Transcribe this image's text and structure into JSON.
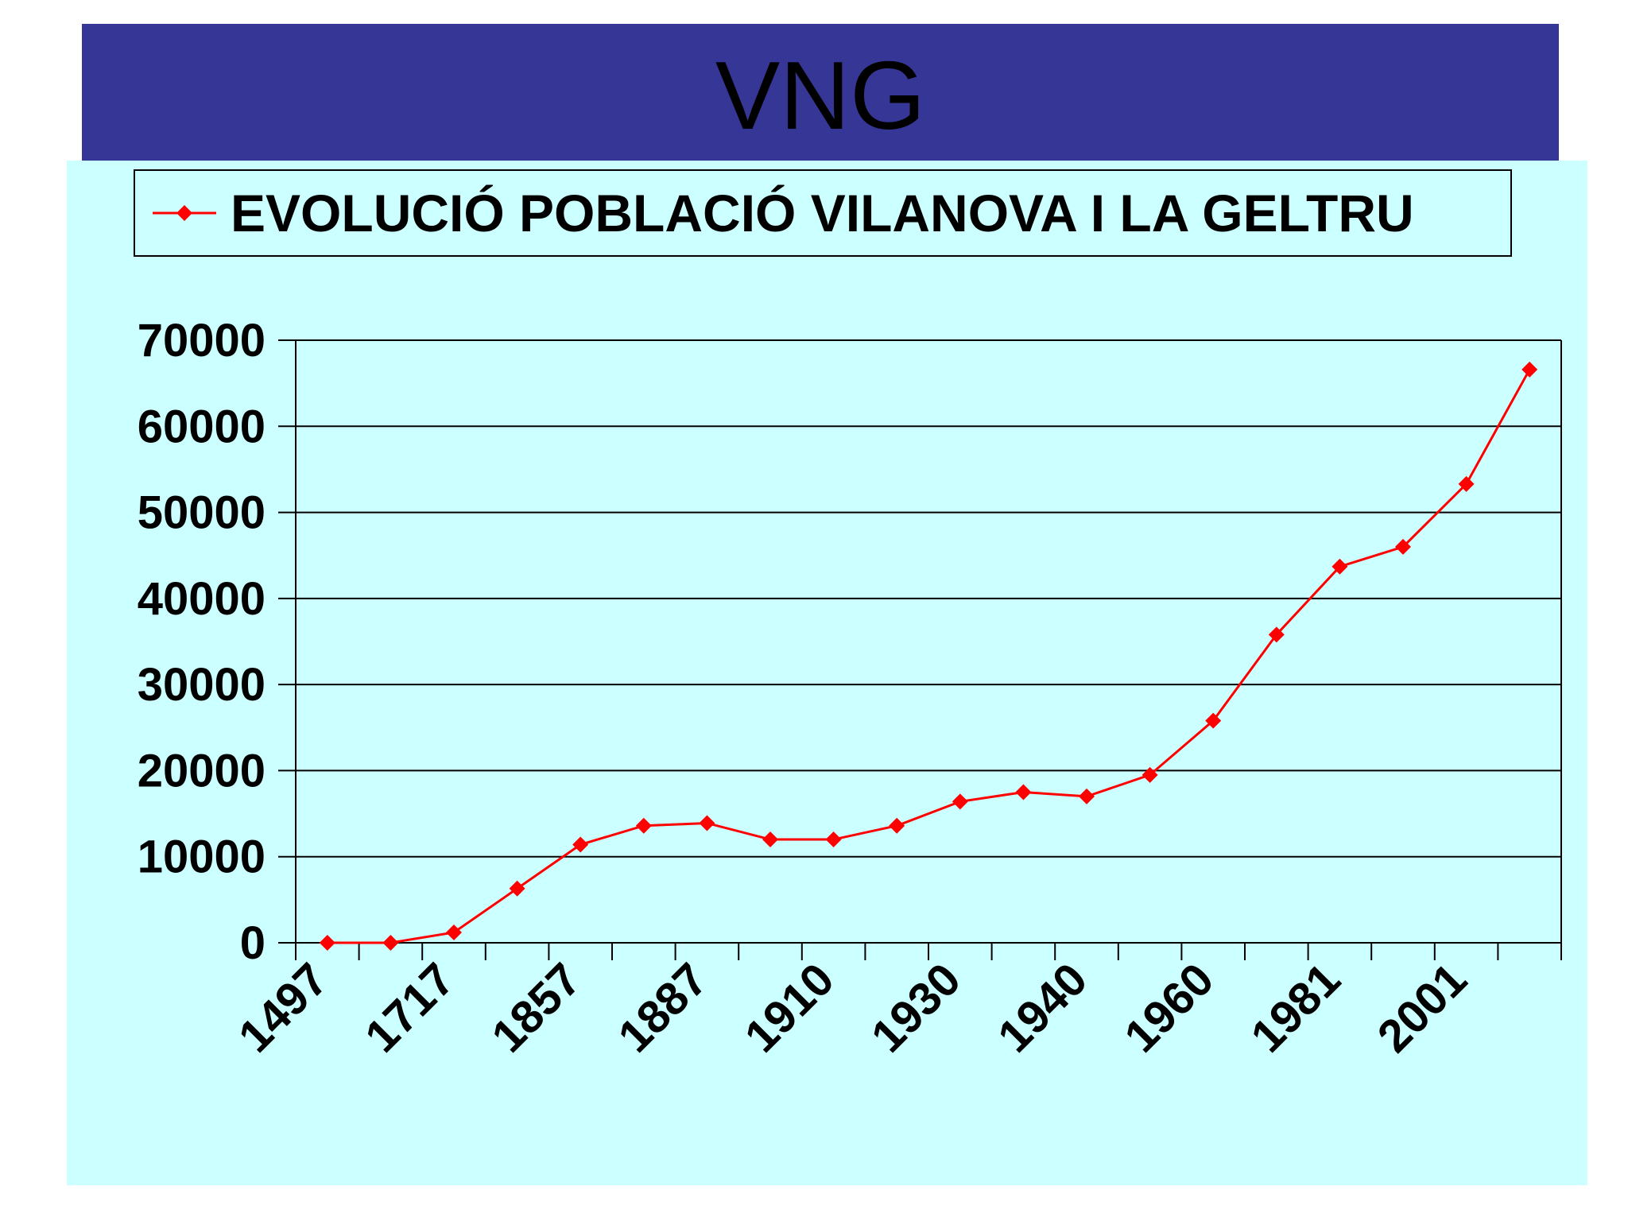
{
  "slide": {
    "title": "VNG",
    "title_bar_color": "#363696",
    "background_color": "#ccffff"
  },
  "chart_data": {
    "type": "line",
    "title": "",
    "xlabel": "",
    "ylabel": "",
    "ylim": [
      0,
      70000
    ],
    "yticks": [
      0,
      10000,
      20000,
      30000,
      40000,
      50000,
      60000,
      70000
    ],
    "x_tick_labels": [
      "1497",
      "1717",
      "1857",
      "1887",
      "1910",
      "1930",
      "1940",
      "1960",
      "1981",
      "2001"
    ],
    "grid": "horizontal",
    "legend": "top",
    "line_color": "#ff0000",
    "marker": "diamond",
    "series": [
      {
        "name": "EVOLUCIÓ POBLACIÓ VILANOVA I LA GELTRU",
        "values": [
          0,
          0,
          1200,
          6300,
          11400,
          13600,
          13900,
          12000,
          12000,
          13600,
          16400,
          17500,
          17000,
          19500,
          25800,
          35800,
          43700,
          46000,
          53300,
          66600
        ]
      }
    ]
  }
}
